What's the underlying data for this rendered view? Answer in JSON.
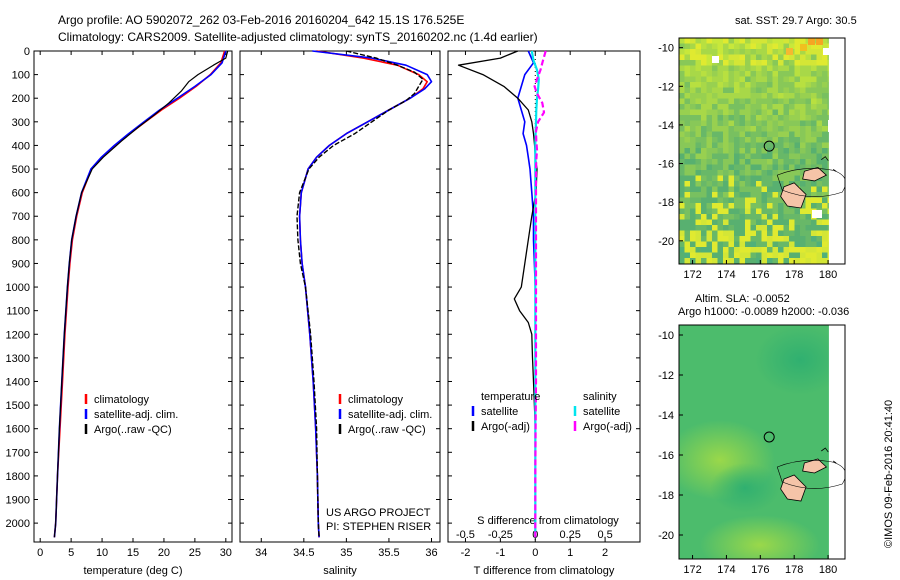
{
  "header": {
    "title_line1": "Argo profile: AO 5902072_262 03-Feb-2016 20160204_642 15.1S 176.525E",
    "title_line2": "Climatology: CARS2009. Satellite-adjusted climatology: synTS_20160202.nc (1.4d earlier)"
  },
  "side_label": "©IMOS 09-Feb-2016 20:41:40",
  "project_note": [
    "US ARGO PROJECT",
    "PI: STEPHEN RISER"
  ],
  "colors": {
    "climatology": "#ff0000",
    "satellite": "#0000ff",
    "argo": "#000000",
    "sal_sat": "#00e5ee",
    "sal_argo": "#ff00ff"
  },
  "chart_data": [
    {
      "type": "line",
      "id": "temperature",
      "xlabel": "temperature (deg C)",
      "ylabel": "",
      "xlim": [
        -1,
        31
      ],
      "ylim": [
        2080,
        0
      ],
      "xticks": [
        0,
        5,
        10,
        15,
        20,
        25,
        30
      ],
      "yticks": [
        0,
        100,
        200,
        300,
        400,
        500,
        600,
        700,
        800,
        900,
        1000,
        1100,
        1200,
        1300,
        1400,
        1500,
        1600,
        1700,
        1800,
        1900,
        2000
      ],
      "legend": [
        "climatology",
        "satellite-adj. clim.",
        "Argo(..raw -QC)"
      ],
      "series": [
        {
          "name": "climatology",
          "depth": [
            0,
            50,
            100,
            150,
            200,
            250,
            300,
            350,
            400,
            450,
            500,
            600,
            700,
            800,
            900,
            1000,
            1200,
            1400,
            1600,
            1800,
            2000,
            2060
          ],
          "values": [
            29.8,
            29.2,
            27.5,
            25.2,
            22.5,
            19.6,
            17.0,
            14.5,
            12.2,
            10.0,
            8.3,
            6.8,
            5.9,
            5.2,
            4.8,
            4.5,
            4.0,
            3.6,
            3.2,
            2.8,
            2.5,
            2.3
          ]
        },
        {
          "name": "satellite-adj. clim.",
          "depth": [
            0,
            50,
            100,
            150,
            200,
            250,
            300,
            350,
            400,
            450,
            500,
            600,
            700,
            800,
            900,
            1000,
            1200,
            1400,
            1600,
            1800,
            2000,
            2060
          ],
          "values": [
            30.0,
            29.4,
            27.6,
            25.0,
            22.2,
            19.3,
            16.8,
            14.3,
            12.0,
            9.9,
            8.2,
            6.7,
            5.8,
            5.1,
            4.7,
            4.4,
            3.9,
            3.5,
            3.1,
            2.8,
            2.5,
            2.3
          ]
        },
        {
          "name": "Argo(..raw -QC)",
          "depth": [
            0,
            30,
            60,
            100,
            130,
            170,
            220,
            270,
            320,
            380,
            450,
            500,
            600,
            700,
            800,
            900,
            1000,
            1200,
            1400,
            1600,
            1800,
            2000,
            2060
          ],
          "values": [
            30.3,
            30.0,
            28.0,
            25.5,
            24.0,
            22.8,
            20.8,
            18.5,
            16.0,
            13.2,
            10.2,
            8.4,
            6.7,
            5.8,
            5.1,
            4.7,
            4.4,
            3.9,
            3.5,
            3.1,
            2.8,
            2.5,
            2.3
          ]
        }
      ]
    },
    {
      "type": "line",
      "id": "salinity",
      "xlabel": "salinity",
      "xlim": [
        33.75,
        36.1
      ],
      "ylim": [
        2080,
        0
      ],
      "xticks": [
        34,
        34.5,
        35,
        35.5,
        36
      ],
      "legend": [
        "climatology",
        "satellite-adj. clim.",
        "Argo(..raw -QC)"
      ],
      "series": [
        {
          "name": "climatology",
          "depth": [
            0,
            30,
            60,
            100,
            130,
            160,
            200,
            250,
            300,
            350,
            400,
            450,
            500,
            600,
            700,
            800,
            900,
            1000,
            1200,
            1400,
            1600,
            1800,
            2000,
            2060
          ],
          "values": [
            34.65,
            35.2,
            35.6,
            35.85,
            35.95,
            35.9,
            35.75,
            35.5,
            35.25,
            35.0,
            34.8,
            34.65,
            34.55,
            34.47,
            34.45,
            34.46,
            34.48,
            34.52,
            34.57,
            34.61,
            34.64,
            34.66,
            34.67,
            34.68
          ]
        },
        {
          "name": "satellite-adj. clim.",
          "depth": [
            0,
            30,
            60,
            100,
            130,
            160,
            200,
            250,
            300,
            350,
            400,
            450,
            500,
            600,
            700,
            800,
            900,
            1000,
            1200,
            1400,
            1600,
            1800,
            2000,
            2060
          ],
          "values": [
            34.6,
            35.3,
            35.7,
            35.95,
            36.0,
            35.92,
            35.75,
            35.5,
            35.25,
            35.0,
            34.8,
            34.65,
            34.55,
            34.47,
            34.45,
            34.46,
            34.48,
            34.52,
            34.57,
            34.61,
            34.64,
            34.66,
            34.67,
            34.68
          ]
        },
        {
          "name": "Argo(..raw -QC)",
          "depth": [
            0,
            30,
            60,
            90,
            120,
            150,
            180,
            210,
            250,
            300,
            350,
            400,
            450,
            500,
            600,
            700,
            800,
            900,
            1000,
            1200,
            1400,
            1600,
            1800,
            2000,
            2060
          ],
          "values": [
            35.0,
            35.35,
            35.6,
            35.8,
            35.9,
            35.85,
            35.8,
            35.7,
            35.5,
            35.3,
            35.1,
            34.85,
            34.68,
            34.56,
            34.45,
            34.42,
            34.43,
            34.46,
            34.52,
            34.58,
            34.62,
            34.65,
            34.66,
            34.67,
            34.68
          ]
        }
      ]
    },
    {
      "type": "line",
      "id": "difference",
      "xlabel": "T difference from climatology",
      "xlabel_top": "S difference from climatology",
      "xlim": [
        -2.5,
        3.0
      ],
      "ylim": [
        2080,
        0
      ],
      "xticks": [
        -2,
        -1,
        0,
        1,
        2
      ],
      "xticks_s_labels": [
        "-0.5",
        "-0.25",
        "0",
        "0.25",
        "0.5"
      ],
      "legend_temperature_title": "temperature",
      "legend_salinity_title": "salinity",
      "legend": [
        "satellite",
        "Argo(-adj)",
        "satellite",
        "Argo(-adj)"
      ],
      "series": [
        {
          "name": "T satellite",
          "depth": [
            0,
            50,
            100,
            150,
            200,
            250,
            300,
            350,
            400,
            450,
            500,
            600,
            700,
            800,
            1000,
            1400,
            1800,
            2060
          ],
          "values": [
            -0.2,
            -0.05,
            -0.3,
            -0.4,
            -0.5,
            -0.4,
            -0.3,
            -0.35,
            -0.25,
            -0.2,
            -0.15,
            -0.1,
            -0.05,
            -0.05,
            0,
            0,
            0,
            0
          ]
        },
        {
          "name": "T Argo(-adj)",
          "depth": [
            0,
            30,
            60,
            100,
            150,
            200,
            250,
            300,
            350,
            400,
            450,
            500,
            600,
            700,
            800,
            900,
            1000,
            1050,
            1100,
            1150,
            1200,
            1300,
            1400,
            1600,
            1800,
            2060
          ],
          "values": [
            -0.5,
            -1.0,
            -2.2,
            -1.5,
            -0.9,
            -0.5,
            -0.2,
            -0.1,
            -0.05,
            -0.02,
            0,
            0.05,
            0.02,
            -0.1,
            -0.2,
            -0.3,
            -0.4,
            -0.6,
            -0.45,
            -0.2,
            -0.1,
            -0.08,
            -0.05,
            0,
            0,
            0
          ]
        },
        {
          "name": "S satellite",
          "depth": [
            0,
            40,
            80,
            120,
            160,
            200,
            250,
            300,
            350,
            400,
            500,
            700,
            900,
            1200,
            1600,
            2060
          ],
          "values": [
            -0.1,
            -0.05,
            0.05,
            0.1,
            0.08,
            0.05,
            0.03,
            0.02,
            0.01,
            0,
            0,
            0,
            0,
            0,
            0,
            0
          ]
        },
        {
          "name": "S Argo(-adj)",
          "depth": [
            0,
            40,
            80,
            120,
            150,
            180,
            220,
            260,
            300,
            340,
            380,
            420,
            460,
            500,
            600,
            700,
            800,
            1000,
            1200,
            1400,
            1600,
            1800,
            2060
          ],
          "values": [
            0.3,
            0.22,
            0.15,
            0.05,
            -0.02,
            0.05,
            0.2,
            0.25,
            0.08,
            0.02,
            0.03,
            0.05,
            0.03,
            0.02,
            0.02,
            0.02,
            0.02,
            0.02,
            0.02,
            0.02,
            0.01,
            0.0,
            0.0
          ]
        }
      ]
    },
    {
      "type": "heatmap",
      "id": "sst-map",
      "title": "sat. SST: 29.7 Argo: 30.5",
      "xlim": [
        171.2,
        181.0
      ],
      "ylim": [
        -21.2,
        -9.5
      ],
      "xticks": [
        172,
        174,
        176,
        178,
        180
      ],
      "yticks": [
        -10,
        -12,
        -14,
        -16,
        -18,
        -20
      ],
      "marker": {
        "lon": 176.525,
        "lat": -15.1
      }
    },
    {
      "type": "heatmap",
      "id": "sla-map",
      "title": "Altim. SLA: -0.0052",
      "subtitle": "Argo h1000: -0.0089 h2000: -0.036",
      "xlim": [
        171.2,
        181.0
      ],
      "ylim": [
        -21.2,
        -9.5
      ],
      "xticks": [
        172,
        174,
        176,
        178,
        180
      ],
      "yticks": [
        -10,
        -12,
        -14,
        -16,
        -18,
        -20
      ],
      "marker": {
        "lon": 176.525,
        "lat": -15.1
      }
    }
  ]
}
